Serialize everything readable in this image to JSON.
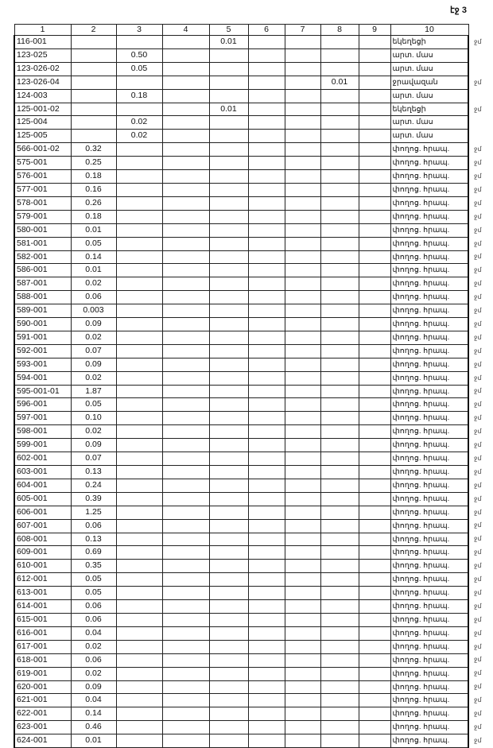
{
  "page_label": "էջ 3",
  "columns": [
    "1",
    "2",
    "3",
    "4",
    "5",
    "6",
    "7",
    "8",
    "9",
    "10"
  ],
  "rows": [
    {
      "c": [
        "116-001",
        "",
        "",
        "",
        "0.01",
        "",
        "",
        "",
        "",
        "եկեղեցի"
      ],
      "m": "ջմ"
    },
    {
      "c": [
        "123-025",
        "",
        "0.50",
        "",
        "",
        "",
        "",
        "",
        "",
        "արտ. մաս"
      ],
      "m": ""
    },
    {
      "c": [
        "123-026-02",
        "",
        "0.05",
        "",
        "",
        "",
        "",
        "",
        "",
        "արտ. մաս"
      ],
      "m": ""
    },
    {
      "c": [
        "123-026-04",
        "",
        "",
        "",
        "",
        "",
        "",
        "0.01",
        "",
        "ջրավազան"
      ],
      "m": "ջմ"
    },
    {
      "c": [
        "124-003",
        "",
        "0.18",
        "",
        "",
        "",
        "",
        "",
        "",
        "արտ. մաս"
      ],
      "m": ""
    },
    {
      "c": [
        "125-001-02",
        "",
        "",
        "",
        "0.01",
        "",
        "",
        "",
        "",
        "եկեղեցի"
      ],
      "m": "ջմ"
    },
    {
      "c": [
        "125-004",
        "",
        "0.02",
        "",
        "",
        "",
        "",
        "",
        "",
        "արտ. մաս"
      ],
      "m": ""
    },
    {
      "c": [
        "125-005",
        "",
        "0.02",
        "",
        "",
        "",
        "",
        "",
        "",
        "արտ. մաս"
      ],
      "m": ""
    },
    {
      "c": [
        "566-001-02",
        "0.32",
        "",
        "",
        "",
        "",
        "",
        "",
        "",
        "փողոց. հրապ."
      ],
      "m": "ջմ"
    },
    {
      "c": [
        "575-001",
        "0.25",
        "",
        "",
        "",
        "",
        "",
        "",
        "",
        "փողոց. հրապ."
      ],
      "m": "ջմ"
    },
    {
      "c": [
        "576-001",
        "0.18",
        "",
        "",
        "",
        "",
        "",
        "",
        "",
        "փողոց. հրապ."
      ],
      "m": "ջմ"
    },
    {
      "c": [
        "577-001",
        "0.16",
        "",
        "",
        "",
        "",
        "",
        "",
        "",
        "փողոց. հրապ."
      ],
      "m": "ջմ"
    },
    {
      "c": [
        "578-001",
        "0.26",
        "",
        "",
        "",
        "",
        "",
        "",
        "",
        "փողոց. հրապ."
      ],
      "m": "ջմ"
    },
    {
      "c": [
        "579-001",
        "0.18",
        "",
        "",
        "",
        "",
        "",
        "",
        "",
        "փողոց. հրապ."
      ],
      "m": "ջմ"
    },
    {
      "c": [
        "580-001",
        "0.01",
        "",
        "",
        "",
        "",
        "",
        "",
        "",
        "փողոց. հրապ."
      ],
      "m": "ջմ"
    },
    {
      "c": [
        "581-001",
        "0.05",
        "",
        "",
        "",
        "",
        "",
        "",
        "",
        "փողոց. հրապ."
      ],
      "m": "ջմ"
    },
    {
      "c": [
        "582-001",
        "0.14",
        "",
        "",
        "",
        "",
        "",
        "",
        "",
        "փողոց. հրապ."
      ],
      "m": "ջմ"
    },
    {
      "c": [
        "586-001",
        "0.01",
        "",
        "",
        "",
        "",
        "",
        "",
        "",
        "փողոց. հրապ."
      ],
      "m": "ջմ"
    },
    {
      "c": [
        "587-001",
        "0.02",
        "",
        "",
        "",
        "",
        "",
        "",
        "",
        "փողոց. հրապ."
      ],
      "m": "ջմ"
    },
    {
      "c": [
        "588-001",
        "0.06",
        "",
        "",
        "",
        "",
        "",
        "",
        "",
        "փողոց. հրապ."
      ],
      "m": "ջմ"
    },
    {
      "c": [
        "589-001",
        "0.003",
        "",
        "",
        "",
        "",
        "",
        "",
        "",
        "փողոց. հրապ."
      ],
      "m": "ջմ"
    },
    {
      "c": [
        "590-001",
        "0.09",
        "",
        "",
        "",
        "",
        "",
        "",
        "",
        "փողոց. հրապ."
      ],
      "m": "ջմ"
    },
    {
      "c": [
        "591-001",
        "0.02",
        "",
        "",
        "",
        "",
        "",
        "",
        "",
        "փողոց. հրապ."
      ],
      "m": "ջմ"
    },
    {
      "c": [
        "592-001",
        "0.07",
        "",
        "",
        "",
        "",
        "",
        "",
        "",
        "փողոց. հրապ."
      ],
      "m": "ջմ"
    },
    {
      "c": [
        "593-001",
        "0.09",
        "",
        "",
        "",
        "",
        "",
        "",
        "",
        "փողոց. հրապ."
      ],
      "m": "ջմ"
    },
    {
      "c": [
        "594-001",
        "0.02",
        "",
        "",
        "",
        "",
        "",
        "",
        "",
        "փողոց. հրապ."
      ],
      "m": "ջմ"
    },
    {
      "c": [
        "595-001-01",
        "1.87",
        "",
        "",
        "",
        "",
        "",
        "",
        "",
        "փողոց. հրապ."
      ],
      "m": "ջմ"
    },
    {
      "c": [
        "596-001",
        "0.05",
        "",
        "",
        "",
        "",
        "",
        "",
        "",
        "փողոց. հրապ."
      ],
      "m": "ջմ"
    },
    {
      "c": [
        "597-001",
        "0.10",
        "",
        "",
        "",
        "",
        "",
        "",
        "",
        "փողոց. հրապ."
      ],
      "m": "ջմ"
    },
    {
      "c": [
        "598-001",
        "0.02",
        "",
        "",
        "",
        "",
        "",
        "",
        "",
        "փողոց. հրապ."
      ],
      "m": "ջմ"
    },
    {
      "c": [
        "599-001",
        "0.09",
        "",
        "",
        "",
        "",
        "",
        "",
        "",
        "փողոց. հրապ."
      ],
      "m": "ջմ"
    },
    {
      "c": [
        "602-001",
        "0.07",
        "",
        "",
        "",
        "",
        "",
        "",
        "",
        "փողոց. հրապ."
      ],
      "m": "ջմ"
    },
    {
      "c": [
        "603-001",
        "0.13",
        "",
        "",
        "",
        "",
        "",
        "",
        "",
        "փողոց. հրապ."
      ],
      "m": "ջմ"
    },
    {
      "c": [
        "604-001",
        "0.24",
        "",
        "",
        "",
        "",
        "",
        "",
        "",
        "փողոց. հրապ."
      ],
      "m": "ջմ"
    },
    {
      "c": [
        "605-001",
        "0.39",
        "",
        "",
        "",
        "",
        "",
        "",
        "",
        "փողոց. հրապ."
      ],
      "m": "ջմ"
    },
    {
      "c": [
        "606-001",
        "1.25",
        "",
        "",
        "",
        "",
        "",
        "",
        "",
        "փողոց. հրապ."
      ],
      "m": "ջմ"
    },
    {
      "c": [
        "607-001",
        "0.06",
        "",
        "",
        "",
        "",
        "",
        "",
        "",
        "փողոց. հրապ."
      ],
      "m": "ջմ"
    },
    {
      "c": [
        "608-001",
        "0.13",
        "",
        "",
        "",
        "",
        "",
        "",
        "",
        "փողոց. հրապ."
      ],
      "m": "ջմ"
    },
    {
      "c": [
        "609-001",
        "0.69",
        "",
        "",
        "",
        "",
        "",
        "",
        "",
        "փողոց. հրապ."
      ],
      "m": "ջմ"
    },
    {
      "c": [
        "610-001",
        "0.35",
        "",
        "",
        "",
        "",
        "",
        "",
        "",
        "փողոց. հրապ."
      ],
      "m": "ջմ"
    },
    {
      "c": [
        "612-001",
        "0.05",
        "",
        "",
        "",
        "",
        "",
        "",
        "",
        "փողոց. հրապ."
      ],
      "m": "ջմ"
    },
    {
      "c": [
        "613-001",
        "0.05",
        "",
        "",
        "",
        "",
        "",
        "",
        "",
        "փողոց. հրապ."
      ],
      "m": "ջմ"
    },
    {
      "c": [
        "614-001",
        "0.06",
        "",
        "",
        "",
        "",
        "",
        "",
        "",
        "փողոց. հրապ."
      ],
      "m": "ջմ"
    },
    {
      "c": [
        "615-001",
        "0.06",
        "",
        "",
        "",
        "",
        "",
        "",
        "",
        "փողոց. հրապ."
      ],
      "m": "ջմ"
    },
    {
      "c": [
        "616-001",
        "0.04",
        "",
        "",
        "",
        "",
        "",
        "",
        "",
        "փողոց. հրապ."
      ],
      "m": "ջմ"
    },
    {
      "c": [
        "617-001",
        "0.02",
        "",
        "",
        "",
        "",
        "",
        "",
        "",
        "փողոց. հրապ."
      ],
      "m": "ջմ"
    },
    {
      "c": [
        "618-001",
        "0.06",
        "",
        "",
        "",
        "",
        "",
        "",
        "",
        "փողոց. հրապ."
      ],
      "m": "ջմ"
    },
    {
      "c": [
        "619-001",
        "0.02",
        "",
        "",
        "",
        "",
        "",
        "",
        "",
        "փողոց. հրապ."
      ],
      "m": "ջմ"
    },
    {
      "c": [
        "620-001",
        "0.09",
        "",
        "",
        "",
        "",
        "",
        "",
        "",
        "փողոց. հրապ."
      ],
      "m": "ջմ"
    },
    {
      "c": [
        "621-001",
        "0.04",
        "",
        "",
        "",
        "",
        "",
        "",
        "",
        "փողոց. հրապ."
      ],
      "m": "ջմ"
    },
    {
      "c": [
        "622-001",
        "0.14",
        "",
        "",
        "",
        "",
        "",
        "",
        "",
        "փողոց. հրապ."
      ],
      "m": "ջմ"
    },
    {
      "c": [
        "623-001",
        "0.46",
        "",
        "",
        "",
        "",
        "",
        "",
        "",
        "փողոց. հրապ."
      ],
      "m": "ջմ"
    },
    {
      "c": [
        "624-001",
        "0.01",
        "",
        "",
        "",
        "",
        "",
        "",
        "",
        "փողոց. հրապ."
      ],
      "m": "ջմ"
    }
  ]
}
